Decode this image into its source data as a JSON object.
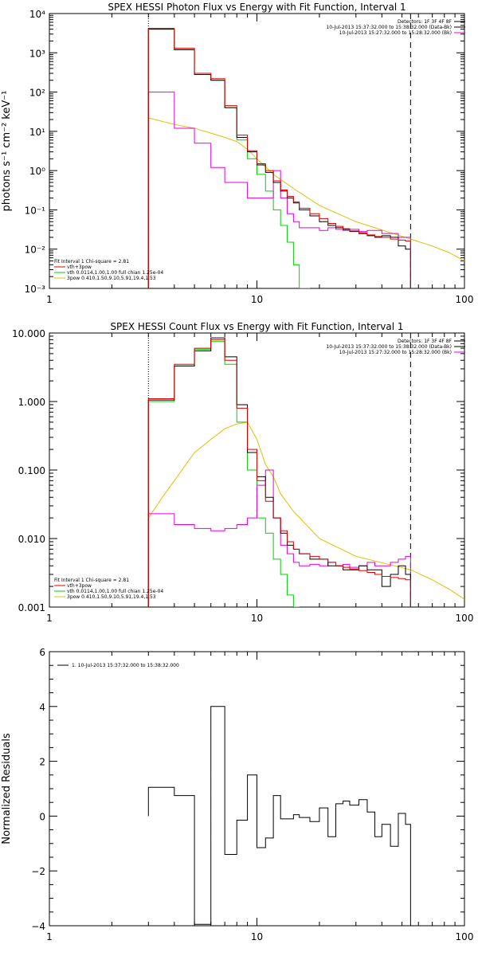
{
  "chart_data": [
    {
      "type": "line",
      "title": "SPEX HESSI Photon Flux vs Energy with Fit Function, Interval 1",
      "ylabel": "photons s⁻¹ cm⁻² keV⁻¹",
      "xlabel": "",
      "xscale": "log",
      "yscale": "log",
      "xlim": [
        1,
        100
      ],
      "ylim": [
        0.001,
        10000
      ],
      "xtick_values": [
        1,
        10,
        100
      ],
      "xtick_labels": [
        "1",
        "10",
        "100"
      ],
      "ytick_values": [
        0.001,
        0.01,
        0.1,
        1,
        10,
        100,
        1000,
        10000
      ],
      "ytick_labels": [
        "10⁻³",
        "10⁻²",
        "10⁻¹",
        "10⁰",
        "10¹",
        "10²",
        "10³",
        "10⁴"
      ],
      "legend_topright": [
        {
          "text": "Detectors: 1F 3F 4F 8F",
          "color": "#000000"
        },
        {
          "text": "10-Jul-2013 15:37:32.000 to 15:38:32.000 (Data-Bk)",
          "color": "#000000"
        },
        {
          "text": "10-Jul-2013 15:27:32.000 to 15:28:32.000 (Bk)",
          "color": "#e000e0"
        }
      ],
      "legend_bottomleft": [
        {
          "text": "Fit Interval 1    Chi-square = 2.81",
          "color": ""
        },
        {
          "text": "vth+3pow",
          "color": "#e00000"
        },
        {
          "text": "vth 0.0114,1.00,1.00  full chian 1.25e-04",
          "color": "#00d000"
        },
        {
          "text": "3pow 0.410,1.50,9.10,5.91,19.4,1.53",
          "color": "#e0c000"
        }
      ],
      "vlines": [
        {
          "x": 3.0,
          "style": "dotted"
        },
        {
          "x": 55.0,
          "style": "dashed"
        }
      ],
      "edges": [
        3.0,
        4.0,
        5.0,
        6.0,
        7.0,
        8.0,
        9.0,
        10.0,
        11.0,
        12.0,
        13.0,
        14.0,
        15.0,
        16.0,
        18.0,
        20.0,
        22.0,
        24.0,
        26.0,
        28.0,
        31.0,
        34.0,
        37.0,
        40.0,
        44.0,
        48.0,
        52.0,
        55.0
      ],
      "series": [
        {
          "name": "Data-Bk",
          "color": "#000000",
          "values": [
            4000,
            1200,
            280,
            200,
            40,
            7,
            3,
            1.4,
            0.9,
            0.5,
            0.3,
            0.2,
            0.15,
            0.1,
            0.07,
            0.05,
            0.04,
            0.035,
            0.032,
            0.028,
            0.025,
            0.022,
            0.02,
            0.022,
            0.02,
            0.012,
            0.01
          ]
        },
        {
          "name": "vth+3pow",
          "color": "#e00000",
          "values": [
            4200,
            1300,
            300,
            220,
            45,
            8,
            3.2,
            1.5,
            1.0,
            0.55,
            0.32,
            0.22,
            0.16,
            0.11,
            0.08,
            0.06,
            0.045,
            0.038,
            0.033,
            0.029,
            0.026,
            0.023,
            0.021,
            0.02,
            0.018,
            0.017,
            0.016
          ]
        },
        {
          "name": "vth",
          "color": "#00d000",
          "values": [
            4000,
            1200,
            280,
            200,
            40,
            6,
            2,
            0.8,
            0.3,
            0.1,
            0.04,
            0.015,
            0.004,
            0.001
          ]
        },
        {
          "name": "Bk",
          "color": "#e000e0",
          "values": [
            100,
            12,
            5,
            1.2,
            0.5,
            0.5,
            0.2,
            0.2,
            0.2,
            1,
            0.2,
            0.08,
            0.05,
            0.035,
            0.035,
            0.03,
            0.035,
            0.032,
            0.03,
            0.032,
            0.028,
            0.03,
            0.03,
            0.025,
            0.025,
            0.02,
            0.02
          ]
        }
      ],
      "smooth_series": [
        {
          "name": "3pow",
          "color": "#e0c000",
          "x": [
            3,
            4,
            5,
            6,
            7,
            8,
            9,
            10,
            12,
            15,
            20,
            30,
            55,
            70,
            85,
            100
          ],
          "values": [
            22,
            15,
            12,
            9,
            7,
            5.5,
            3.5,
            2.0,
            0.8,
            0.35,
            0.13,
            0.05,
            0.018,
            0.012,
            0.008,
            0.005
          ]
        }
      ]
    },
    {
      "type": "line",
      "title": "SPEX HESSI Count Flux vs Energy with Fit Function, Interval 1",
      "ylabel": "",
      "xlabel": "",
      "xscale": "log",
      "yscale": "log",
      "xlim": [
        1,
        100
      ],
      "ylim": [
        0.001,
        10
      ],
      "xtick_values": [
        1,
        10,
        100
      ],
      "xtick_labels": [
        "1",
        "10",
        "100"
      ],
      "ytick_values": [
        0.001,
        0.01,
        0.1,
        1,
        10
      ],
      "ytick_labels": [
        "0.001",
        "0.010",
        "0.100",
        "1.000",
        "10.000"
      ],
      "legend_topright": [
        {
          "text": "Detectors: 1F 3F 4F 8F",
          "color": "#000000"
        },
        {
          "text": "10-Jul-2013 15:37:32.000 to 15:38:32.000 (Data-Bk)",
          "color": "#000000"
        },
        {
          "text": "10-Jul-2013 15:27:32.000 to 15:28:32.000 (Bk)",
          "color": "#e000e0"
        }
      ],
      "legend_bottomleft": [
        {
          "text": "Fit Interval 1    Chi-square = 2.81",
          "color": ""
        },
        {
          "text": "vth+3pow",
          "color": "#e00000"
        },
        {
          "text": "vth 0.0114,1.00,1.00  full chian 1.25e-04",
          "color": "#00d000"
        },
        {
          "text": "3pow 0.410,1.50,9.10,5.91,19.4,1.53",
          "color": "#e0c000"
        }
      ],
      "vlines": [
        {
          "x": 3.0,
          "style": "dotted"
        },
        {
          "x": 55.0,
          "style": "dashed"
        }
      ],
      "edges": [
        3.0,
        4.0,
        5.0,
        6.0,
        7.0,
        8.0,
        9.0,
        10.0,
        11.0,
        12.0,
        13.0,
        14.0,
        15.0,
        16.0,
        18.0,
        20.0,
        22.0,
        24.0,
        26.0,
        28.0,
        31.0,
        34.0,
        37.0,
        40.0,
        44.0,
        48.0,
        52.0,
        55.0
      ],
      "series": [
        {
          "name": "Data-Bk",
          "color": "#000000",
          "values": [
            1.05,
            3.3,
            5.5,
            8.5,
            4.5,
            0.9,
            0.18,
            0.08,
            0.04,
            0.02,
            0.012,
            0.008,
            0.007,
            0.006,
            0.005,
            0.005,
            0.004,
            0.004,
            0.0035,
            0.0035,
            0.004,
            0.0035,
            0.0035,
            0.002,
            0.003,
            0.004,
            0.003
          ]
        },
        {
          "name": "vth+3pow",
          "color": "#e00000",
          "values": [
            1.1,
            3.5,
            6.0,
            8.0,
            4.0,
            0.8,
            0.2,
            0.07,
            0.035,
            0.02,
            0.013,
            0.009,
            0.007,
            0.006,
            0.0055,
            0.005,
            0.0045,
            0.004,
            0.0038,
            0.0036,
            0.0034,
            0.0032,
            0.003,
            0.0028,
            0.0027,
            0.0026,
            0.0025
          ]
        },
        {
          "name": "vth",
          "color": "#00d000",
          "values": [
            1.0,
            3.3,
            5.8,
            7.5,
            3.5,
            0.5,
            0.1,
            0.02,
            0.012,
            0.005,
            0.003,
            0.0015,
            0.001
          ]
        },
        {
          "name": "Bk",
          "color": "#e000e0",
          "values": [
            0.023,
            0.016,
            0.014,
            0.013,
            0.014,
            0.016,
            0.02,
            0.06,
            0.1,
            0.02,
            0.008,
            0.006,
            0.0045,
            0.004,
            0.0042,
            0.004,
            0.0045,
            0.004,
            0.0042,
            0.0038,
            0.004,
            0.0045,
            0.004,
            0.004,
            0.0045,
            0.005,
            0.0055
          ]
        }
      ],
      "smooth_series": [
        {
          "name": "3pow",
          "color": "#e0c000",
          "x": [
            3,
            3.5,
            4,
            5,
            6,
            7,
            8,
            9,
            10,
            11,
            12,
            13,
            15,
            20,
            30,
            55,
            70,
            85,
            100
          ],
          "values": [
            0.02,
            0.04,
            0.07,
            0.18,
            0.28,
            0.4,
            0.47,
            0.5,
            0.28,
            0.12,
            0.08,
            0.045,
            0.025,
            0.01,
            0.0055,
            0.0035,
            0.0025,
            0.0018,
            0.0013
          ]
        }
      ]
    },
    {
      "type": "line",
      "title": "",
      "ylabel": "Normalized Residuals",
      "xlabel": "",
      "xscale": "log",
      "yscale": "linear",
      "xlim": [
        1,
        100
      ],
      "ylim": [
        -4,
        6
      ],
      "xtick_values": [
        1,
        10,
        100
      ],
      "xtick_labels": [
        "1",
        "10",
        "100"
      ],
      "ytick_values": [
        -4,
        -2,
        0,
        2,
        4,
        6
      ],
      "ytick_labels": [
        "−4",
        "−2",
        "0",
        "2",
        "4",
        "6"
      ],
      "legend_topleft": [
        {
          "text": "1. 10-Jul-2013 15:37:32.000 to 15:38:32.000",
          "color": "#000000"
        }
      ],
      "edges": [
        3.0,
        4.0,
        5.0,
        6.0,
        7.0,
        8.0,
        9.0,
        10.0,
        11.0,
        12.0,
        13.0,
        14.0,
        15.0,
        16.0,
        18.0,
        20.0,
        22.0,
        24.0,
        26.0,
        28.0,
        31.0,
        34.0,
        37.0,
        40.0,
        44.0,
        48.0,
        52.0,
        55.0
      ],
      "series": [
        {
          "name": "residuals",
          "color": "#000000",
          "values": [
            1.05,
            0.75,
            -3.95,
            4.0,
            -1.4,
            -0.15,
            1.5,
            -1.15,
            -0.8,
            0.75,
            -0.1,
            -0.1,
            0.05,
            -0.05,
            -0.2,
            0.3,
            -0.75,
            0.45,
            0.55,
            0.4,
            0.6,
            0.15,
            -0.75,
            -0.3,
            -1.1,
            0.1,
            -0.3
          ]
        }
      ]
    }
  ]
}
